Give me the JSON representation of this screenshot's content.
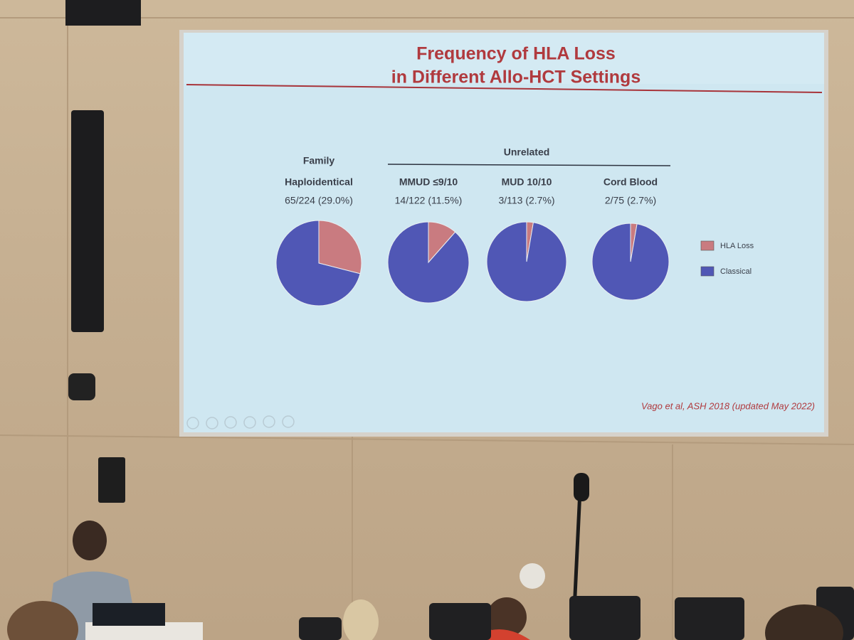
{
  "slide": {
    "title_lines": [
      "Frequency of HLA Loss",
      "in Different Allo-HCT Settings"
    ],
    "group_label": "Unrelated",
    "citation": "Vago et al, ASH 2018 (updated May 2022)"
  },
  "legend": {
    "labels": [
      "HLA Loss",
      "Classical"
    ],
    "colors": [
      "#c97b80",
      "#5057b5"
    ]
  },
  "chart_data": [
    {
      "type": "pie",
      "title_lines": [
        "Family",
        "Haploidentical"
      ],
      "subtitle": "65/224 (29.0%)",
      "values": [
        29.0,
        71.0
      ]
    },
    {
      "type": "pie",
      "title_lines": [
        "MMUD ≤9/10"
      ],
      "subtitle": "14/122 (11.5%)",
      "values": [
        11.5,
        88.5
      ]
    },
    {
      "type": "pie",
      "title_lines": [
        "MUD 10/10"
      ],
      "subtitle": "3/113 (2.7%)",
      "values": [
        2.7,
        97.3
      ]
    },
    {
      "type": "pie",
      "title_lines": [
        "Cord Blood"
      ],
      "subtitle": "2/75 (2.7%)",
      "values": [
        2.7,
        97.3
      ]
    }
  ]
}
